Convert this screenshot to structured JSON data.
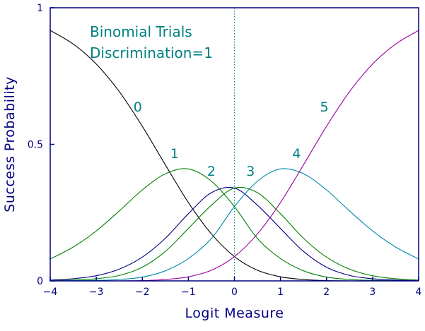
{
  "chart_data": {
    "type": "line",
    "xlabel": "Logit Measure",
    "ylabel": "Success Probability",
    "xlim": [
      -4,
      4
    ],
    "ylim": [
      0,
      1
    ],
    "x_ticks": [
      -4,
      -3,
      -2,
      -1,
      0,
      1,
      2,
      3,
      4
    ],
    "x_tick_labels": [
      "−4",
      "−3",
      "−2",
      "−1",
      "0",
      "1",
      "2",
      "3",
      "4"
    ],
    "y_ticks": [
      0,
      0.5,
      1
    ],
    "y_tick_labels": [
      "0",
      "0.5",
      "1"
    ],
    "annotations": [
      "Binomial Trials",
      "Discrimination=1"
    ],
    "reference_line": {
      "x": 0,
      "style": "dotted"
    },
    "x": [
      -4,
      -3.5,
      -3,
      -2.5,
      -2,
      -1.5,
      -1,
      -0.5,
      0,
      0.5,
      1,
      1.5,
      2,
      2.5,
      3,
      3.5,
      4
    ],
    "series": [
      {
        "name": "0",
        "color": "#000000",
        "values": [
          0.917,
          0.867,
          0.794,
          0.693,
          0.566,
          0.425,
          0.287,
          0.172,
          0.089,
          0.039,
          0.015,
          0.005,
          0.001,
          0.0,
          0.0,
          0.0,
          0.0
        ]
      },
      {
        "name": "1",
        "color": "#008000",
        "values": [
          0.08,
          0.124,
          0.183,
          0.256,
          0.333,
          0.392,
          0.41,
          0.365,
          0.272,
          0.155,
          0.082,
          0.037,
          0.014,
          0.005,
          0.002,
          0.001,
          0.0
        ]
      },
      {
        "name": "2",
        "color": "#000080",
        "values": [
          0.003,
          0.008,
          0.019,
          0.043,
          0.087,
          0.156,
          0.246,
          0.323,
          0.34,
          0.277,
          0.192,
          0.108,
          0.05,
          0.02,
          0.008,
          0.003,
          0.001
        ]
      },
      {
        "name": "3",
        "color": "#008000",
        "values": [
          0.001,
          0.003,
          0.008,
          0.02,
          0.05,
          0.108,
          0.192,
          0.277,
          0.34,
          0.323,
          0.246,
          0.156,
          0.087,
          0.043,
          0.019,
          0.008,
          0.003
        ]
      },
      {
        "name": "4",
        "color": "#0088aa",
        "values": [
          0.0,
          0.001,
          0.002,
          0.005,
          0.014,
          0.037,
          0.082,
          0.155,
          0.272,
          0.365,
          0.41,
          0.392,
          0.333,
          0.256,
          0.183,
          0.124,
          0.08
        ]
      },
      {
        "name": "5",
        "color": "#990099",
        "values": [
          0.0,
          0.0,
          0.0,
          0.0,
          0.001,
          0.005,
          0.015,
          0.039,
          0.089,
          0.172,
          0.287,
          0.425,
          0.566,
          0.693,
          0.794,
          0.867,
          0.917
        ]
      }
    ],
    "curve_labels": [
      {
        "text": "0",
        "x": -2.1,
        "y": 0.62,
        "color": "#008080"
      },
      {
        "text": "1",
        "x": -1.3,
        "y": 0.45,
        "color": "#008080"
      },
      {
        "text": "2",
        "x": -0.5,
        "y": 0.385,
        "color": "#008080"
      },
      {
        "text": "3",
        "x": 0.35,
        "y": 0.385,
        "color": "#008080"
      },
      {
        "text": "4",
        "x": 1.35,
        "y": 0.45,
        "color": "#008080"
      },
      {
        "text": "5",
        "x": 1.95,
        "y": 0.62,
        "color": "#008080"
      }
    ],
    "colors": {
      "axis": "#000080",
      "annotation": "#008080",
      "reference_line": "#008080"
    },
    "grid": false,
    "legend": "none"
  }
}
